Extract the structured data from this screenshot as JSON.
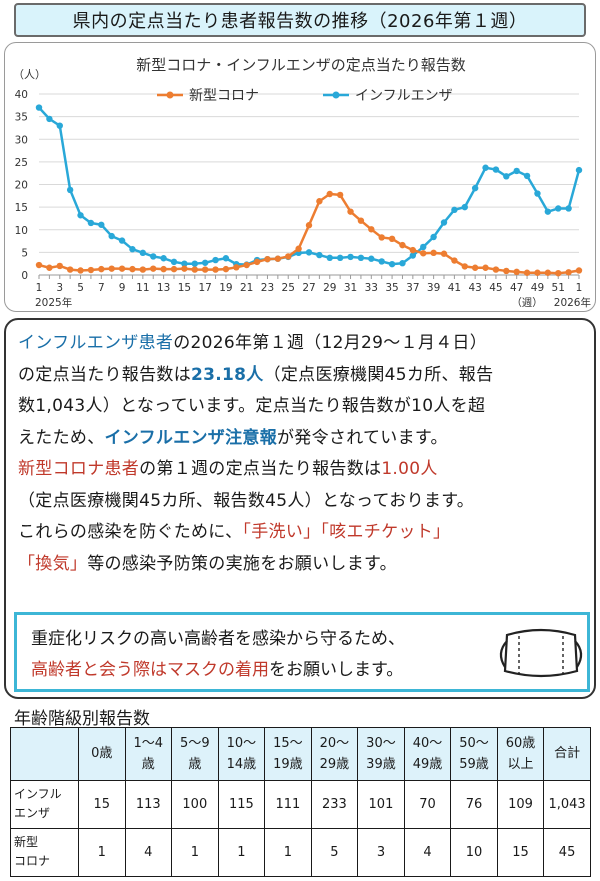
{
  "header": {
    "title": "県内の定点当たり患者報告数の推移（2026年第１週）"
  },
  "chart_data": {
    "type": "line",
    "title": "新型コロナ・インフルエンザの定点当たり報告数",
    "ylabel": "（人）",
    "ylim": [
      0,
      40
    ],
    "yticks": [
      "0",
      "5",
      "10",
      "15",
      "20",
      "25",
      "30",
      "35",
      "40"
    ],
    "x_tick_labels": [
      "1",
      "3",
      "5",
      "7",
      "9",
      "11",
      "13",
      "15",
      "17",
      "19",
      "21",
      "23",
      "25",
      "27",
      "29",
      "31",
      "33",
      "35",
      "37",
      "39",
      "41",
      "43",
      "45",
      "47",
      "49",
      "51",
      "1"
    ],
    "x_week_numbers": [
      1,
      2,
      3,
      4,
      5,
      6,
      7,
      8,
      9,
      10,
      11,
      12,
      13,
      14,
      15,
      16,
      17,
      18,
      19,
      20,
      21,
      22,
      23,
      24,
      25,
      26,
      27,
      28,
      29,
      30,
      31,
      32,
      33,
      34,
      35,
      36,
      37,
      38,
      39,
      40,
      41,
      42,
      43,
      44,
      45,
      46,
      47,
      48,
      49,
      50,
      51,
      52,
      1
    ],
    "x_unit_label": "（週）",
    "year_labels": {
      "start": "2025年",
      "end": "2026年"
    },
    "legend_position": "top-center",
    "grid": true,
    "series": [
      {
        "name": "新型コロナ",
        "color": "#ed7d31",
        "values": [
          2.2,
          1.6,
          2.0,
          1.2,
          1.0,
          1.1,
          1.3,
          1.4,
          1.4,
          1.3,
          1.2,
          1.4,
          1.3,
          1.3,
          1.4,
          1.2,
          1.2,
          1.2,
          1.3,
          1.7,
          2.2,
          2.9,
          3.5,
          3.6,
          4.1,
          5.8,
          11.0,
          16.3,
          17.9,
          17.7,
          14.0,
          12.0,
          10.1,
          8.3,
          8.0,
          6.6,
          5.5,
          4.8,
          4.9,
          4.7,
          3.2,
          1.9,
          1.6,
          1.6,
          1.2,
          0.9,
          0.7,
          0.5,
          0.5,
          0.5,
          0.4,
          0.6,
          1.0
        ]
      },
      {
        "name": "インフルエンザ",
        "color": "#29a8d8",
        "values": [
          37.0,
          34.5,
          33.0,
          18.8,
          13.2,
          11.5,
          11.1,
          8.6,
          7.6,
          5.7,
          4.9,
          4.1,
          3.7,
          2.9,
          2.5,
          2.5,
          2.7,
          3.3,
          3.7,
          2.4,
          2.3,
          3.3,
          3.5,
          3.6,
          4.0,
          4.9,
          5.0,
          4.4,
          3.8,
          3.8,
          4.0,
          3.8,
          3.6,
          3.0,
          2.4,
          2.6,
          4.3,
          6.2,
          8.4,
          11.6,
          14.4,
          15.0,
          19.2,
          23.7,
          23.3,
          21.8,
          23.0,
          21.9,
          18.0,
          14.0,
          14.7,
          14.7,
          23.18
        ]
      }
    ]
  },
  "info": {
    "p1_flu_label": "インフルエンザ患者",
    "p1_text_a": "の2026年第１週（12月29～１月４日）",
    "p1_text_b": "の定点当たり報告数は",
    "p1_value": "23.18人",
    "p1_text_c": "（定点医療機関45カ所、報告",
    "p1_text_d": "数1,043人）となっています。定点当たり報告数が10人を超",
    "p1_text_e": "えたため、",
    "p1_alert": "インフルエンザ注意報",
    "p1_text_f": "が発令されています。",
    "p2_covid_label": "新型コロナ患者",
    "p2_text_a": "の第１週の定点当たり報告数は",
    "p2_value": "1.00人",
    "p2_text_b": "（定点医療機関45カ所、報告数45人）となっております。",
    "p3_text_a": "これらの感染を防ぐために、",
    "p3_handwash": "「手洗い」",
    "p3_etiquette": "「咳エチケット」",
    "p3_ventilation": "「換気」",
    "p3_text_b": "等の感染予防策の実施をお願いします。"
  },
  "mask_notice": {
    "line1": "重症化リスクの高い高齢者を感染から守るため、",
    "line2_red": "高齢者と会う際はマスクの着用",
    "line2_rest": "をお願いします。",
    "icon": "mask-icon"
  },
  "age_table": {
    "title": "年齢階級別報告数",
    "headers": [
      [
        "0歳"
      ],
      [
        "1～4",
        "歳"
      ],
      [
        "5～9",
        "歳"
      ],
      [
        "10～",
        "14歳"
      ],
      [
        "15～",
        "19歳"
      ],
      [
        "20～",
        "29歳"
      ],
      [
        "30～",
        "39歳"
      ],
      [
        "40～",
        "49歳"
      ],
      [
        "50～",
        "59歳"
      ],
      [
        "60歳",
        "以上"
      ],
      [
        "合計"
      ]
    ],
    "rows": [
      {
        "label": [
          "インフル",
          "エンザ"
        ],
        "values": [
          "15",
          "113",
          "100",
          "115",
          "111",
          "233",
          "101",
          "70",
          "76",
          "109",
          "1,043"
        ]
      },
      {
        "label": [
          "新型",
          "コロナ"
        ],
        "values": [
          "1",
          "4",
          "1",
          "1",
          "1",
          "5",
          "3",
          "4",
          "10",
          "15",
          "45"
        ]
      }
    ],
    "colors": {
      "header_bg": "#ddf2fa"
    }
  }
}
